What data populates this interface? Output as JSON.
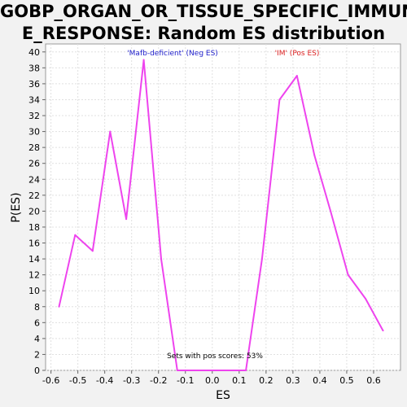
{
  "chart_data": {
    "type": "line",
    "title": "GOBP_ORGAN_OR_TISSUE_SPECIFIC_IMMUNE_RESPONSE: Random ES distribution",
    "title_lines": [
      "GOBP_ORGAN_OR_TISSUE_SPECIFIC_IMMUN",
      "E_RESPONSE: Random ES distribution"
    ],
    "xlabel": "ES",
    "ylabel": "P(ES)",
    "xlim": [
      -0.62,
      0.7
    ],
    "ylim": [
      0,
      41
    ],
    "x_ticks": [
      -0.6,
      -0.5,
      -0.4,
      -0.3,
      -0.2,
      -0.1,
      0.0,
      0.1,
      0.2,
      0.3,
      0.4,
      0.5,
      0.6
    ],
    "x_tick_labels": [
      "-0.6",
      "-0.5",
      "-0.4",
      "-0.3",
      "-0.2",
      "-0.1",
      "0.0",
      "0.1",
      "0.2",
      "0.3",
      "0.4",
      "0.5",
      "0.6"
    ],
    "y_ticks": [
      0,
      2,
      4,
      6,
      8,
      10,
      12,
      14,
      16,
      18,
      20,
      22,
      24,
      26,
      28,
      30,
      32,
      34,
      36,
      38,
      40
    ],
    "grid": true,
    "series": [
      {
        "color": "#ee44ee",
        "x": [
          -0.57,
          -0.51,
          -0.445,
          -0.38,
          -0.32,
          -0.255,
          -0.19,
          -0.13,
          0.125,
          0.185,
          0.25,
          0.315,
          0.38,
          0.44,
          0.505,
          0.57,
          0.635
        ],
        "y": [
          8,
          17,
          15,
          30,
          19,
          39,
          14,
          0,
          0,
          14,
          34,
          37,
          27,
          20,
          12,
          9,
          5
        ]
      }
    ],
    "annotations": {
      "neg_label": "'Mafb-deficient' (Neg ES)",
      "pos_label": "'IM' (Pos ES)",
      "footer": "Sets with pos scores: 53%"
    },
    "colors": {
      "line": "#ee44ee",
      "neg_label": "#2222cc",
      "pos_label": "#dd2222",
      "plot_bg": "#ffffff",
      "page_bg": "#f2f2f2",
      "grid": "#e0e0e0"
    }
  }
}
